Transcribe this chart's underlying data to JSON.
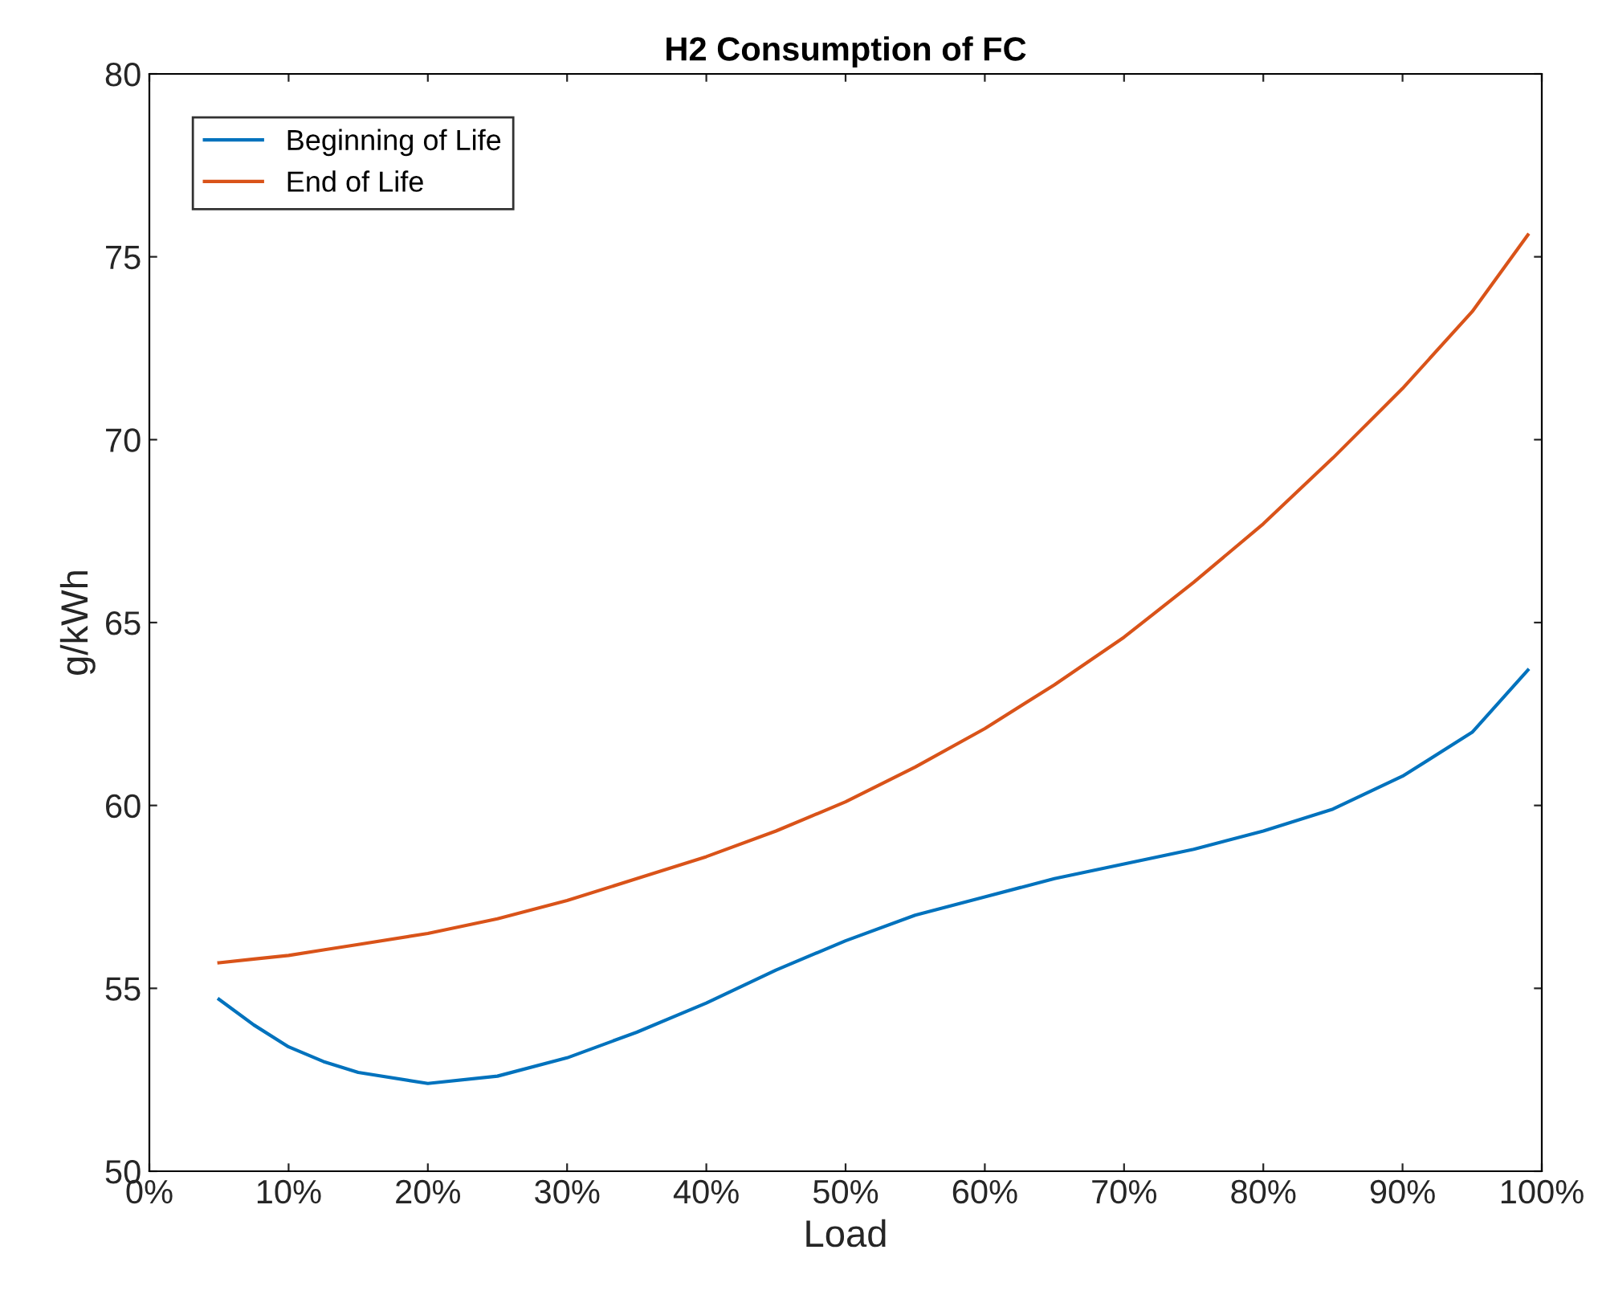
{
  "chart_data": {
    "type": "line",
    "title": "H2 Consumption of FC",
    "xlabel": "Load",
    "ylabel": "g/kWh",
    "x": [
      5,
      7.5,
      10,
      12.5,
      15,
      20,
      25,
      30,
      35,
      40,
      45,
      50,
      55,
      60,
      65,
      70,
      75,
      80,
      85,
      90,
      95,
      99
    ],
    "series": [
      {
        "name": "Beginning of Life",
        "color": "#0072bd",
        "values": [
          54.7,
          54.0,
          53.4,
          53.0,
          52.7,
          52.4,
          52.6,
          53.1,
          53.8,
          54.6,
          55.5,
          56.3,
          57.0,
          57.5,
          58.0,
          58.4,
          58.8,
          59.3,
          59.9,
          60.8,
          62.0,
          63.7
        ]
      },
      {
        "name": "End of Life",
        "color": "#d95319",
        "values": [
          55.7,
          55.8,
          55.9,
          56.05,
          56.2,
          56.5,
          56.9,
          57.4,
          58.0,
          58.6,
          59.3,
          60.1,
          61.05,
          62.1,
          63.3,
          64.6,
          66.1,
          67.7,
          69.5,
          71.4,
          73.5,
          75.6
        ]
      }
    ],
    "xlim": [
      0,
      100
    ],
    "xticks": [
      {
        "value": 0,
        "label": "0%"
      },
      {
        "value": 10,
        "label": "10%"
      },
      {
        "value": 20,
        "label": "20%"
      },
      {
        "value": 30,
        "label": "30%"
      },
      {
        "value": 40,
        "label": "40%"
      },
      {
        "value": 50,
        "label": "50%"
      },
      {
        "value": 60,
        "label": "60%"
      },
      {
        "value": 70,
        "label": "70%"
      },
      {
        "value": 80,
        "label": "80%"
      },
      {
        "value": 90,
        "label": "90%"
      },
      {
        "value": 100,
        "label": "100%"
      }
    ],
    "ylim": [
      50,
      80
    ],
    "yticks": [
      50,
      55,
      60,
      65,
      70,
      75,
      80
    ],
    "grid": false,
    "legend": "top left"
  }
}
